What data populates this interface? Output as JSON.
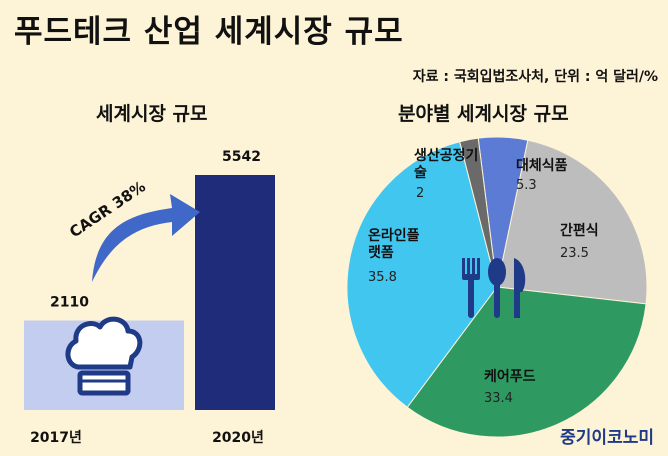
{
  "header": {
    "title": "푸드테크 산업 세계시장 규모",
    "source": "자료 : 국회입법조사처, 단위 : 억 달러/%"
  },
  "brand": {
    "label": "중기이코노미"
  },
  "colors": {
    "background": "#fdf3d6",
    "bar_2017": "#c2cdf0",
    "bar_2020": "#1f2c7a",
    "arrow": "#3f68c8"
  },
  "chart_data": [
    {
      "type": "bar",
      "title": "세계시장 규모",
      "categories": [
        "2017년",
        "2020년"
      ],
      "values": [
        2110,
        5542
      ],
      "value_labels": [
        "2110",
        "5542"
      ],
      "annotation": "CAGR 38%",
      "icon": "chef-hat-icon"
    },
    {
      "type": "pie",
      "title": "분야별 세계시장 규모",
      "slices": [
        {
          "label": "대체식품",
          "value": 5.3,
          "value_label": "5.3",
          "color": "#5b7bd5"
        },
        {
          "label": "간편식",
          "value": 23.5,
          "value_label": "23.5",
          "color": "#bdbdbd"
        },
        {
          "label": "케어푸드",
          "value": 33.4,
          "value_label": "33.4",
          "color": "#2e9a62"
        },
        {
          "label": "온라인플랫폼",
          "value": 35.8,
          "value_label": "35.8",
          "color": "#41c6f0"
        },
        {
          "label": "생산공정기술",
          "value": 2,
          "value_label": "2",
          "color": "#6a6a6a"
        }
      ],
      "icon": "cutlery-icon"
    }
  ]
}
